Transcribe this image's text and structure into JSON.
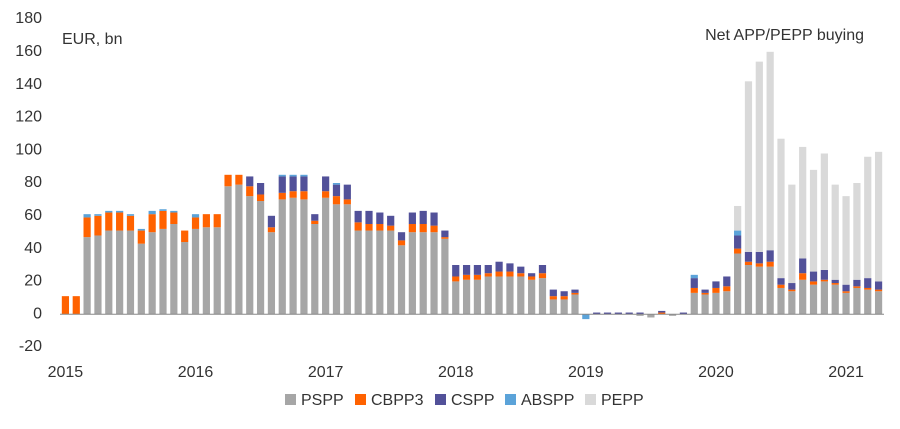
{
  "chart_data": {
    "type": "stacked_bar",
    "annotations": [
      "EUR, bn",
      "Net APP/PEPP buying"
    ],
    "categories": [
      "2015",
      null,
      null,
      null,
      null,
      null,
      null,
      null,
      null,
      null,
      null,
      null,
      "2016",
      null,
      null,
      null,
      null,
      null,
      null,
      null,
      null,
      null,
      null,
      null,
      "2017",
      null,
      null,
      null,
      null,
      null,
      null,
      null,
      null,
      null,
      null,
      null,
      "2018",
      null,
      null,
      null,
      null,
      null,
      null,
      null,
      null,
      null,
      null,
      null,
      "2019",
      null,
      null,
      null,
      null,
      null,
      null,
      null,
      null,
      null,
      null,
      null,
      "2020",
      null,
      null,
      null,
      null,
      null,
      null,
      null,
      null,
      null,
      null,
      null,
      "2021",
      null,
      null,
      null
    ],
    "series": [
      {
        "name": "PSPP",
        "color": "#a6a6a6",
        "values": [
          0,
          0,
          47,
          48,
          51,
          51,
          51,
          43,
          50,
          52,
          55,
          44,
          52,
          53,
          53,
          78,
          79,
          72,
          69,
          50,
          70,
          71,
          70,
          55,
          71,
          67,
          67,
          51,
          51,
          51,
          51,
          42,
          50,
          50,
          50,
          46,
          20,
          21,
          21,
          23,
          23,
          23,
          23,
          21,
          22,
          9,
          9,
          12,
          0,
          0,
          0,
          0,
          0,
          -1,
          -2,
          0,
          -1,
          0,
          13,
          12,
          13,
          14,
          37,
          30,
          29,
          29,
          16,
          14,
          21,
          18,
          20,
          18,
          13,
          16,
          15,
          14
        ]
      },
      {
        "name": "CBPP3",
        "color": "#ff6200",
        "values": [
          11,
          11,
          12,
          12,
          11,
          11,
          9,
          8,
          11,
          11,
          7,
          7,
          7,
          8,
          8,
          7,
          6,
          6,
          4,
          3,
          4,
          4,
          5,
          2,
          4,
          5,
          3,
          5,
          4,
          4,
          3,
          3,
          5,
          5,
          4,
          1,
          3,
          3,
          3,
          2,
          3,
          3,
          2,
          2,
          3,
          2,
          2,
          1,
          0,
          0,
          0,
          0,
          0,
          0,
          0,
          1,
          0,
          0,
          3,
          1,
          3,
          3,
          3,
          2,
          2,
          3,
          2,
          1,
          4,
          2,
          1,
          1,
          1,
          1,
          1,
          1
        ]
      },
      {
        "name": "CSPP",
        "color": "#525199",
        "values": [
          0,
          0,
          0,
          0,
          0,
          0,
          0,
          0,
          0,
          0,
          0,
          0,
          0,
          0,
          0,
          0,
          0,
          6,
          7,
          7,
          10,
          9,
          9,
          4,
          9,
          7,
          9,
          7,
          8,
          7,
          6,
          5,
          7,
          8,
          8,
          4,
          7,
          6,
          6,
          5,
          6,
          5,
          4,
          2,
          5,
          4,
          3,
          2,
          0,
          1,
          1,
          1,
          1,
          1,
          0,
          1,
          0,
          1,
          6,
          2,
          4,
          6,
          8,
          6,
          7,
          7,
          4,
          4,
          9,
          6,
          6,
          2,
          4,
          4,
          6,
          5
        ]
      },
      {
        "name": "ABSPP",
        "color": "#5ba3d9",
        "values": [
          0,
          0,
          2,
          1,
          1,
          1,
          1,
          1,
          2,
          1,
          1,
          0,
          2,
          0,
          0,
          0,
          0,
          0,
          0,
          0,
          1,
          1,
          1,
          0,
          0,
          1,
          0,
          0,
          0,
          0,
          0,
          0,
          0,
          0,
          0,
          0,
          0,
          0,
          0,
          0,
          0,
          0,
          0,
          0,
          0,
          0,
          0,
          0,
          -3,
          0,
          0,
          0,
          0,
          0,
          0,
          0,
          0,
          0,
          2,
          0,
          0,
          0,
          3,
          0,
          0,
          0,
          0,
          0,
          0,
          0,
          0,
          0,
          0,
          0,
          0,
          0
        ]
      },
      {
        "name": "PEPP",
        "color": "#d9d9d9",
        "values": [
          0,
          0,
          0,
          0,
          0,
          0,
          0,
          0,
          0,
          0,
          0,
          0,
          0,
          0,
          0,
          0,
          0,
          0,
          0,
          0,
          0,
          0,
          0,
          0,
          0,
          0,
          0,
          0,
          0,
          0,
          0,
          0,
          0,
          0,
          0,
          0,
          0,
          0,
          0,
          0,
          0,
          0,
          0,
          0,
          0,
          0,
          0,
          0,
          0,
          0,
          0,
          0,
          0,
          0,
          0,
          0,
          0,
          0,
          0,
          0,
          0,
          0,
          15,
          104,
          116,
          121,
          85,
          60,
          68,
          62,
          71,
          58,
          54,
          59,
          74,
          79
        ]
      }
    ],
    "ylim": [
      -20,
      180
    ],
    "yticks": [
      -20,
      0,
      20,
      40,
      60,
      80,
      100,
      120,
      140,
      160,
      180
    ],
    "legend": "bottom",
    "grid": false
  }
}
